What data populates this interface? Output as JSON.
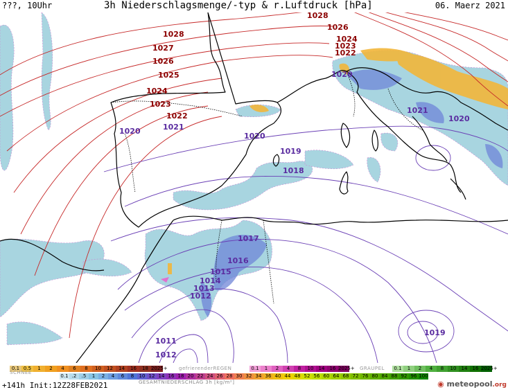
{
  "header": {
    "left": "???, 10Uhr",
    "title": "3h Niederschlagsmenge/-typ & r.Luftdruck [hPa]",
    "date": "06. Maerz 2021"
  },
  "isobar_labels": [
    {
      "text": "1028",
      "type": "hi"
    },
    {
      "text": "1028",
      "type": "hi"
    },
    {
      "text": "1027",
      "type": "hi"
    },
    {
      "text": "1026",
      "type": "hi"
    },
    {
      "text": "1025",
      "type": "hi"
    },
    {
      "text": "1024",
      "type": "hi"
    },
    {
      "text": "1023",
      "type": "hi"
    },
    {
      "text": "1022",
      "type": "hi"
    },
    {
      "text": "1026",
      "type": "hi"
    },
    {
      "text": "1024",
      "type": "hi"
    },
    {
      "text": "1023",
      "type": "hi"
    },
    {
      "text": "1022",
      "type": "hi"
    },
    {
      "text": "1021",
      "type": "lo"
    },
    {
      "text": "1020",
      "type": "lo"
    },
    {
      "text": "1020",
      "type": "lo"
    },
    {
      "text": "1020",
      "type": "lo"
    },
    {
      "text": "1021",
      "type": "lo"
    },
    {
      "text": "1020",
      "type": "lo"
    },
    {
      "text": "1019",
      "type": "lo"
    },
    {
      "text": "1018",
      "type": "lo"
    },
    {
      "text": "1017",
      "type": "lo"
    },
    {
      "text": "1016",
      "type": "lo"
    },
    {
      "text": "1015",
      "type": "lo"
    },
    {
      "text": "1014",
      "type": "lo"
    },
    {
      "text": "1013",
      "type": "lo"
    },
    {
      "text": "1012",
      "type": "lo"
    },
    {
      "text": "1012",
      "type": "lo"
    },
    {
      "text": "1011",
      "type": "lo"
    },
    {
      "text": "1019",
      "type": "lo"
    }
  ],
  "legend": {
    "schnee_label": "SCHNEE",
    "schnee": [
      "0.1",
      "0.5",
      "1",
      "2",
      "4",
      "6",
      "8",
      "10",
      "12",
      "14",
      "16",
      "18",
      "2025+"
    ],
    "regen_label": "gefrierenderREGEN",
    "regen": [
      "0.1",
      "1",
      "2",
      "4",
      "8",
      "10",
      "14",
      "16",
      "2025+"
    ],
    "graupel_label": "GRAUPEL",
    "graupel": [
      "0.1",
      "1",
      "2",
      "4",
      "8",
      "10",
      "14",
      "16",
      "2025+"
    ],
    "gesamt_values": [
      "0.1",
      ".2",
      ".5",
      "1",
      "2",
      "4",
      "6",
      "8",
      "10",
      "12",
      "14",
      "16",
      "18",
      "20",
      "22",
      "24",
      "26",
      "28",
      "30",
      "32",
      "34",
      "36",
      "40",
      "44",
      "48",
      "52",
      "56",
      "60",
      "64",
      "68",
      "72",
      "76",
      "80",
      "84",
      "88",
      "92",
      "96",
      "100"
    ],
    "gesamt_label": "GESAMTNIEDERSCHLAG 3h [kg/m²]"
  },
  "footer": {
    "forecast": "+141h Init:12Z28FEB2021",
    "logo_main": "meteopool",
    "logo_tld": ".org"
  },
  "colors": {
    "snow": [
      "#e8c77a",
      "#f0c040",
      "#f0b030",
      "#f0a020",
      "#f09020",
      "#e08020",
      "#e07020",
      "#d06020",
      "#c05020",
      "#b04020",
      "#a03020",
      "#903020",
      "#802020"
    ],
    "freezing_rain": [
      "#f2a0d8",
      "#ec80cc",
      "#e060c0",
      "#d040b0",
      "#c020a0",
      "#b01090",
      "#a00080",
      "#900070",
      "#800060"
    ],
    "graupel": [
      "#b0e0a0",
      "#90d080",
      "#70c060",
      "#50b040",
      "#40a030",
      "#309020",
      "#208010",
      "#107000",
      "#006000"
    ],
    "total": [
      "#d0e8f0",
      "#b8dcec",
      "#a0d0e8",
      "#88c4e4",
      "#7ab0e4",
      "#6c9ce0",
      "#5e88dc",
      "#5074d8",
      "#6060d0",
      "#7050c8",
      "#8040c0",
      "#9030b8",
      "#a020b0",
      "#b030a0",
      "#c04090",
      "#d05080",
      "#e06070",
      "#f07060",
      "#f08050",
      "#f09040",
      "#f0a030",
      "#f0b020",
      "#f0c010",
      "#f0d000",
      "#e0d800",
      "#d0e000",
      "#c0e000",
      "#b0d800",
      "#a0d000",
      "#90c800",
      "#80c000",
      "#70b800",
      "#60b000",
      "#50a800",
      "#40a000",
      "#309800",
      "#209000",
      "#108800"
    ],
    "isobar_high": "#c62828",
    "isobar_low": "#6a3fb5",
    "coast": "#000000",
    "precip": "#8fc8d8"
  }
}
